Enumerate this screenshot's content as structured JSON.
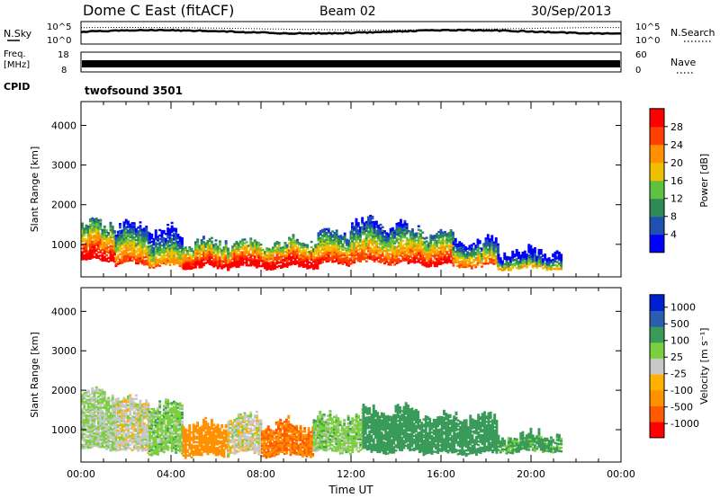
{
  "header": {
    "title": "Dome C East (fitACF)",
    "beam": "Beam 02",
    "date": "30/Sep/2013"
  },
  "top_panel": {
    "left_label": "N.Sky",
    "left_ticks": [
      "10^5",
      "10^0"
    ],
    "right_label": "N.Search",
    "right_ticks": [
      "10^5",
      "10^0"
    ],
    "nsky_level": 0.55,
    "nsearch_level": 0.7
  },
  "freq_panel": {
    "left_label_1": "Freq.",
    "left_label_2": "[MHz]",
    "left_ticks": [
      "18",
      "8"
    ],
    "right_label": "Nave",
    "right_ticks": [
      "60",
      "0"
    ],
    "cpid_label": "CPID",
    "cpid_value": "twofsound 3501"
  },
  "colors": {
    "power": [
      "#0000ff",
      "#2050b0",
      "#2e8b57",
      "#60c040",
      "#f0c000",
      "#ff9000",
      "#ff4000",
      "#ff0000"
    ],
    "velocity": [
      "#ff0000",
      "#ff5a00",
      "#ff9000",
      "#ffb000",
      "#c8c8c8",
      "#7cd040",
      "#3a9a5a",
      "#2b5db0",
      "#0020d0"
    ]
  },
  "chart_data": [
    {
      "type": "heatmap",
      "name": "power",
      "xlabel": "",
      "ylabel": "Slant Range [km]",
      "xlim": [
        0,
        24
      ],
      "ylim": [
        180,
        4600
      ],
      "y_ticks": [
        1000,
        2000,
        3000,
        4000
      ],
      "colorbar_label": "Power [dB]",
      "colorbar_ticks": [
        "4",
        "8",
        "12",
        "16",
        "20",
        "24",
        "28"
      ],
      "colorbar_range": [
        0,
        32
      ],
      "bands": [
        {
          "x": [
            0.0,
            1.5
          ],
          "y": [
            600,
            1500
          ],
          "value": 24
        },
        {
          "x": [
            1.5,
            3.0
          ],
          "y": [
            500,
            1450
          ],
          "value": 18
        },
        {
          "x": [
            3.0,
            4.5
          ],
          "y": [
            450,
            1300
          ],
          "value": 14
        },
        {
          "x": [
            4.5,
            6.5
          ],
          "y": [
            400,
            1000
          ],
          "value": 24
        },
        {
          "x": [
            6.5,
            10.5
          ],
          "y": [
            420,
            1000
          ],
          "value": 26
        },
        {
          "x": [
            10.5,
            12.0
          ],
          "y": [
            500,
            1250
          ],
          "value": 20
        },
        {
          "x": [
            12.0,
            14.5
          ],
          "y": [
            550,
            1500
          ],
          "value": 18
        },
        {
          "x": [
            14.5,
            16.5
          ],
          "y": [
            500,
            1300
          ],
          "value": 22
        },
        {
          "x": [
            16.5,
            18.5
          ],
          "y": [
            450,
            1050
          ],
          "value": 16
        },
        {
          "x": [
            18.5,
            21.3
          ],
          "y": [
            400,
            800
          ],
          "value": 10
        }
      ]
    },
    {
      "type": "heatmap",
      "name": "velocity",
      "xlabel": "Time UT",
      "ylabel": "Slant Range [km]",
      "xlim": [
        0,
        24
      ],
      "ylim": [
        180,
        4600
      ],
      "y_ticks": [
        1000,
        2000,
        3000,
        4000
      ],
      "x_ticks": [
        "00:00",
        "04:00",
        "08:00",
        "12:00",
        "16:00",
        "20:00",
        "00:00"
      ],
      "colorbar_label": "Velocity [m s⁻¹]",
      "colorbar_ticks": [
        "-1000",
        "-500",
        "-100",
        "-25",
        "25",
        "100",
        "500",
        "1000"
      ],
      "bands": [
        {
          "x": [
            0.0,
            1.5
          ],
          "y": [
            500,
            1900
          ],
          "value": 25
        },
        {
          "x": [
            1.5,
            3.0
          ],
          "y": [
            450,
            1700
          ],
          "value": 0
        },
        {
          "x": [
            3.0,
            4.5
          ],
          "y": [
            400,
            1600
          ],
          "value": 50
        },
        {
          "x": [
            4.5,
            6.5
          ],
          "y": [
            350,
            1100
          ],
          "value": -100
        },
        {
          "x": [
            6.5,
            8.0
          ],
          "y": [
            400,
            1300
          ],
          "value": 0
        },
        {
          "x": [
            8.0,
            10.3
          ],
          "y": [
            350,
            1100
          ],
          "value": -150
        },
        {
          "x": [
            10.3,
            12.5
          ],
          "y": [
            450,
            1300
          ],
          "value": 50
        },
        {
          "x": [
            12.5,
            15.0
          ],
          "y": [
            450,
            1500
          ],
          "value": 120
        },
        {
          "x": [
            15.0,
            18.5
          ],
          "y": [
            400,
            1300
          ],
          "value": 150
        },
        {
          "x": [
            18.5,
            21.3
          ],
          "y": [
            450,
            800
          ],
          "value": 100
        }
      ]
    }
  ]
}
